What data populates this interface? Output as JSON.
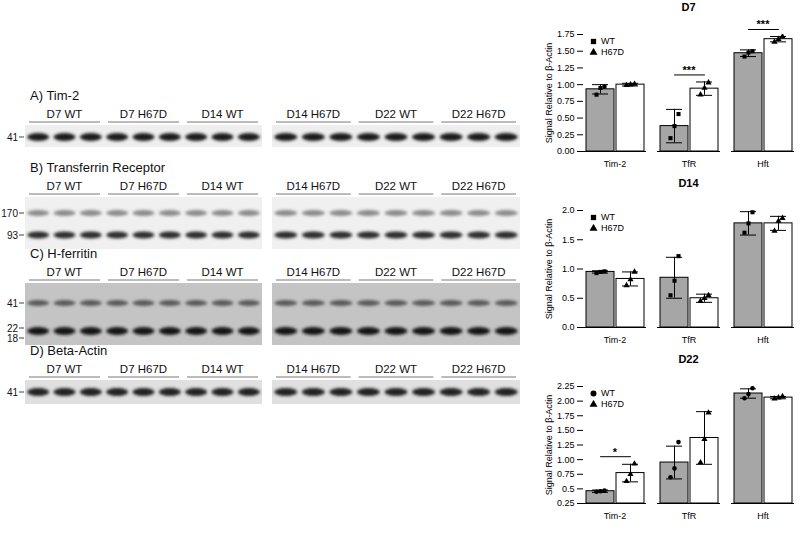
{
  "blots": {
    "panels": [
      {
        "title": "A) Tim-2",
        "markers": [
          41
        ]
      },
      {
        "title": "B) Transferrin Receptor",
        "markers": [
          170,
          93
        ]
      },
      {
        "title": "C) H-ferritin",
        "markers": [
          41,
          22,
          18
        ]
      },
      {
        "title": "D) Beta-Actin",
        "markers": [
          41
        ]
      }
    ],
    "lane_groups": [
      [
        "D7 WT",
        "D7 H67D",
        "D14 WT"
      ],
      [
        "D14 H67D",
        "D22 WT",
        "D22 H67D"
      ]
    ]
  },
  "chart_data": [
    {
      "type": "bar",
      "title": "D7",
      "y_label": "Signal Relative to β-Actin",
      "categories": [
        "Tim-2",
        "TfR",
        "Hft"
      ],
      "series": [
        {
          "name": "WT",
          "color": "#a6a6a6",
          "marker": "square",
          "values": [
            0.93,
            0.38,
            1.47
          ],
          "errors": [
            0.07,
            0.25,
            0.05
          ],
          "points": [
            [
              0.85,
              0.95,
              0.97
            ],
            [
              0.2,
              0.38,
              0.56
            ],
            [
              1.42,
              1.48,
              1.5
            ]
          ]
        },
        {
          "name": "H67D",
          "color": "#ffffff",
          "marker": "triangle",
          "values": [
            1.0,
            0.94,
            1.68
          ],
          "errors": [
            0.02,
            0.1,
            0.04
          ],
          "points": [
            [
              0.99,
              1.0,
              1.01
            ],
            [
              0.85,
              0.95,
              1.03
            ],
            [
              1.64,
              1.68,
              1.72
            ]
          ]
        }
      ],
      "ylim": [
        0,
        1.75
      ],
      "yticks": [
        {
          "value": 0,
          "label": "0.00"
        },
        {
          "value": 0.25,
          "label": "0.25"
        },
        {
          "value": 0.5,
          "label": "0.50"
        },
        {
          "value": 0.75,
          "label": "0.75"
        },
        {
          "value": 1,
          "label": "1.00"
        },
        {
          "value": 1.25,
          "label": "1.25"
        },
        {
          "value": 1.5,
          "label": "1.50"
        },
        {
          "value": 1.75,
          "label": "1.75"
        }
      ],
      "legend": "upper left",
      "annotations": [
        {
          "category": "TfR",
          "text": "***"
        },
        {
          "category": "Hft",
          "text": "***"
        }
      ]
    },
    {
      "type": "bar",
      "title": "D14",
      "y_label": "Signal Relative to β-Actin",
      "categories": [
        "Tim-2",
        "TfR",
        "Hft"
      ],
      "series": [
        {
          "name": "WT",
          "color": "#a6a6a6",
          "marker": "square",
          "values": [
            0.95,
            0.85,
            1.78
          ],
          "errors": [
            0.02,
            0.35,
            0.2
          ],
          "points": [
            [
              0.93,
              0.95,
              0.96
            ],
            [
              0.55,
              0.8,
              1.22
            ],
            [
              1.62,
              1.78,
              1.97
            ]
          ]
        },
        {
          "name": "H67D",
          "color": "#ffffff",
          "marker": "triangle",
          "values": [
            0.83,
            0.5,
            1.78
          ],
          "errors": [
            0.12,
            0.07,
            0.12
          ],
          "points": [
            [
              0.72,
              0.82,
              0.95
            ],
            [
              0.45,
              0.5,
              0.55
            ],
            [
              1.65,
              1.82,
              1.87
            ]
          ]
        }
      ],
      "ylim": [
        0,
        2
      ],
      "yticks": [
        {
          "value": 0,
          "label": "0.0"
        },
        {
          "value": 0.5,
          "label": "0.5"
        },
        {
          "value": 1,
          "label": "1.0"
        },
        {
          "value": 1.5,
          "label": "1.5"
        },
        {
          "value": 2,
          "label": "2.0"
        }
      ],
      "legend": "upper left",
      "annotations": []
    },
    {
      "type": "bar",
      "title": "D22",
      "y_label": "Signal Relative to β-Actin",
      "categories": [
        "Tim-2",
        "TfR",
        "Hft"
      ],
      "series": [
        {
          "name": "WT",
          "color": "#a6a6a6",
          "marker": "circle",
          "values": [
            0.46,
            0.95,
            2.13
          ],
          "errors": [
            0.02,
            0.28,
            0.08
          ],
          "points": [
            [
              0.45,
              0.46,
              0.47
            ],
            [
              0.7,
              0.85,
              1.3
            ],
            [
              2.05,
              2.12,
              2.22
            ]
          ]
        },
        {
          "name": "H67D",
          "color": "#ffffff",
          "marker": "triangle",
          "values": [
            0.77,
            1.37,
            2.06
          ],
          "errors": [
            0.15,
            0.45,
            0.02
          ],
          "points": [
            [
              0.63,
              0.75,
              0.93
            ],
            [
              0.95,
              1.35,
              1.8
            ],
            [
              2.04,
              2.06,
              2.08
            ]
          ]
        }
      ],
      "ylim": [
        0.25,
        2.25
      ],
      "yticks": [
        0.25,
        0.5,
        0.75,
        {
          "value": 1,
          "label": "1.00"
        },
        1.25,
        {
          "value": 1.5,
          "label": "1.50"
        },
        1.75,
        {
          "value": 2,
          "label": "2.00"
        },
        2.25
      ],
      "legend": "upper left",
      "annotations": [
        {
          "category": "Tim-2",
          "text": "*"
        }
      ]
    }
  ]
}
